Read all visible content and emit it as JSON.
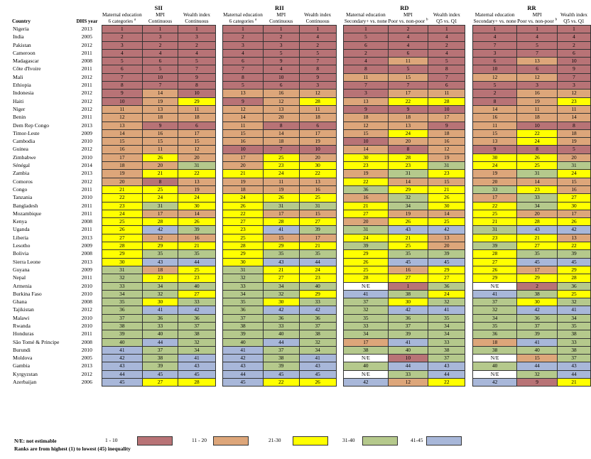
{
  "header": {
    "groups": [
      "SII",
      "RII",
      "RD",
      "RR"
    ],
    "country_label": "Country",
    "dhs_label": "DHS year",
    "sub": [
      [
        "Maternal education",
        "MPI",
        "Wealth index"
      ],
      [
        "Maternal education",
        "MPI",
        "Wealth index"
      ],
      [
        "Maternal education",
        "MPI",
        "Wealth index"
      ],
      [
        "Maternal education",
        "MPI",
        "Wealth index"
      ]
    ],
    "sub2": [
      [
        "6 categories",
        "Continuous",
        "Continuous"
      ],
      [
        "6 categories",
        "Continuous",
        "Continuous"
      ],
      [
        "Secondary+ vs. none",
        "Poor vs. non-poor",
        "Q5 vs. Q1"
      ],
      [
        "Secondary+ vs. none",
        "Poor vs. non-poor",
        "Q5 vs. Q1"
      ]
    ],
    "sup_a": "a",
    "sup_b": "b"
  },
  "rows": [
    {
      "country": "Nigeria",
      "year": "2013",
      "v": [
        "1",
        "1",
        "1",
        "1",
        "1",
        "1",
        "1",
        "2",
        "1",
        "1",
        "1",
        "1"
      ]
    },
    {
      "country": "India",
      "year": "2005",
      "v": [
        "2",
        "3",
        "3",
        "2",
        "2",
        "4",
        "5",
        "4",
        "4",
        "4",
        "4",
        "4"
      ]
    },
    {
      "country": "Pakistan",
      "year": "2012",
      "v": [
        "3",
        "2",
        "2",
        "3",
        "3",
        "2",
        "6",
        "4",
        "2",
        "7",
        "5",
        "2"
      ]
    },
    {
      "country": "Cameroon",
      "year": "2011",
      "v": [
        "4",
        "4",
        "4",
        "4",
        "5",
        "5",
        "2",
        "6",
        "4",
        "3",
        "7",
        "6"
      ]
    },
    {
      "country": "Madagascar",
      "year": "2008",
      "v": [
        "5",
        "6",
        "5",
        "6",
        "9",
        "7",
        "4",
        "11",
        "5",
        "6",
        "13",
        "10"
      ]
    },
    {
      "country": "Côte d'Ivoire",
      "year": "2011",
      "v": [
        "6",
        "5",
        "7",
        "7",
        "4",
        "8",
        "8",
        "5",
        "8",
        "10",
        "6",
        "9"
      ]
    },
    {
      "country": "Mali",
      "year": "2012",
      "v": [
        "7",
        "10",
        "9",
        "8",
        "10",
        "9",
        "11",
        "15",
        "7",
        "12",
        "12",
        "7"
      ]
    },
    {
      "country": "Ethiopia",
      "year": "2011",
      "v": [
        "8",
        "7",
        "8",
        "5",
        "6",
        "3",
        "7",
        "7",
        "6",
        "5",
        "3",
        "3"
      ]
    },
    {
      "country": "Indonesia",
      "year": "2012",
      "v": [
        "9",
        "14",
        "10",
        "13",
        "16",
        "12",
        "3",
        "17",
        "11",
        "2",
        "16",
        "12"
      ]
    },
    {
      "country": "Haiti",
      "year": "2012",
      "v": [
        "10",
        "19",
        "29",
        "9",
        "12",
        "28",
        "13",
        "22",
        "28",
        "8",
        "19",
        "23"
      ]
    },
    {
      "country": "Niger",
      "year": "2012",
      "v": [
        "11",
        "13",
        "11",
        "12",
        "13",
        "11",
        "9",
        "9",
        "10",
        "14",
        "11",
        "11"
      ]
    },
    {
      "country": "Benin",
      "year": "2011",
      "v": [
        "12",
        "18",
        "18",
        "14",
        "20",
        "18",
        "18",
        "18",
        "17",
        "16",
        "18",
        "14"
      ]
    },
    {
      "country": "Dem Rep Congo",
      "year": "2013",
      "v": [
        "13",
        "9",
        "6",
        "11",
        "8",
        "6",
        "12",
        "13",
        "9",
        "11",
        "10",
        "8"
      ]
    },
    {
      "country": "Timor-Leste",
      "year": "2009",
      "v": [
        "14",
        "16",
        "17",
        "15",
        "14",
        "17",
        "15",
        "24",
        "18",
        "15",
        "22",
        "18"
      ]
    },
    {
      "country": "Cambodia",
      "year": "2010",
      "v": [
        "15",
        "15",
        "15",
        "16",
        "18",
        "19",
        "10",
        "20",
        "16",
        "13",
        "24",
        "19"
      ]
    },
    {
      "country": "Guinea",
      "year": "2012",
      "v": [
        "16",
        "11",
        "12",
        "10",
        "7",
        "10",
        "14",
        "8",
        "12",
        "9",
        "8",
        "5"
      ]
    },
    {
      "country": "Zimbabwe",
      "year": "2010",
      "v": [
        "17",
        "26",
        "20",
        "17",
        "25",
        "20",
        "30",
        "28",
        "19",
        "30",
        "26",
        "20"
      ]
    },
    {
      "country": "Sénégal",
      "year": "2014",
      "v": [
        "18",
        "20",
        "31",
        "20",
        "23",
        "30",
        "23",
        "23",
        "31",
        "24",
        "25",
        "31"
      ]
    },
    {
      "country": "Zambia",
      "year": "2013",
      "v": [
        "19",
        "21",
        "22",
        "21",
        "24",
        "22",
        "19",
        "31",
        "23",
        "19",
        "31",
        "24"
      ]
    },
    {
      "country": "Comoros",
      "year": "2012",
      "v": [
        "20",
        "8",
        "13",
        "19",
        "11",
        "13",
        "22",
        "14",
        "15",
        "20",
        "14",
        "15"
      ]
    },
    {
      "country": "Congo",
      "year": "2011",
      "v": [
        "21",
        "25",
        "19",
        "18",
        "19",
        "16",
        "36",
        "29",
        "21",
        "33",
        "23",
        "16"
      ]
    },
    {
      "country": "Tanzania",
      "year": "2010",
      "v": [
        "22",
        "24",
        "24",
        "24",
        "26",
        "25",
        "16",
        "32",
        "26",
        "17",
        "33",
        "27"
      ]
    },
    {
      "country": "Bangladesh",
      "year": "2011",
      "v": [
        "23",
        "31",
        "30",
        "26",
        "31",
        "31",
        "21",
        "34",
        "30",
        "22",
        "34",
        "30"
      ]
    },
    {
      "country": "Mozambique",
      "year": "2011",
      "v": [
        "24",
        "17",
        "14",
        "22",
        "17",
        "15",
        "27",
        "19",
        "14",
        "25",
        "20",
        "17"
      ]
    },
    {
      "country": "Kenya",
      "year": "2008",
      "v": [
        "25",
        "28",
        "26",
        "27",
        "28",
        "27",
        "20",
        "26",
        "25",
        "21",
        "28",
        "26"
      ]
    },
    {
      "country": "Uganda",
      "year": "2011",
      "v": [
        "26",
        "42",
        "39",
        "23",
        "41",
        "39",
        "31",
        "43",
        "42",
        "31",
        "43",
        "42"
      ]
    },
    {
      "country": "Liberia",
      "year": "2013",
      "v": [
        "27",
        "12",
        "16",
        "25",
        "15",
        "17",
        "24",
        "21",
        "13",
        "23",
        "21",
        "13"
      ]
    },
    {
      "country": "Lesotho",
      "year": "2009",
      "v": [
        "28",
        "29",
        "21",
        "28",
        "29",
        "21",
        "39",
        "25",
        "20",
        "39",
        "27",
        "22"
      ]
    },
    {
      "country": "Bolivia",
      "year": "2008",
      "v": [
        "29",
        "35",
        "35",
        "29",
        "35",
        "35",
        "29",
        "35",
        "39",
        "28",
        "35",
        "39"
      ]
    },
    {
      "country": "Sierra Leone",
      "year": "2013",
      "v": [
        "30",
        "43",
        "44",
        "30",
        "43",
        "44",
        "26",
        "45",
        "45",
        "27",
        "45",
        "45"
      ]
    },
    {
      "country": "Guyana",
      "year": "2009",
      "v": [
        "31",
        "18",
        "25",
        "31",
        "21",
        "24",
        "25",
        "16",
        "29",
        "26",
        "17",
        "29"
      ]
    },
    {
      "country": "Nepal",
      "year": "2011",
      "v": [
        "32",
        "23",
        "23",
        "32",
        "27",
        "23",
        "28",
        "27",
        "27",
        "29",
        "29",
        "28"
      ]
    },
    {
      "country": "Armenia",
      "year": "2010",
      "v": [
        "33",
        "34",
        "40",
        "33",
        "34",
        "40",
        "N/E",
        "1",
        "36",
        "N/E",
        "2",
        "36"
      ]
    },
    {
      "country": "Burkina Faso",
      "year": "2010",
      "v": [
        "34",
        "32",
        "27",
        "34",
        "32",
        "29",
        "41",
        "38",
        "24",
        "41",
        "38",
        "25"
      ]
    },
    {
      "country": "Ghana",
      "year": "2008",
      "v": [
        "35",
        "30",
        "33",
        "35",
        "30",
        "33",
        "37",
        "30",
        "32",
        "37",
        "30",
        "32"
      ]
    },
    {
      "country": "Tajikistan",
      "year": "2012",
      "v": [
        "36",
        "41",
        "42",
        "36",
        "42",
        "42",
        "32",
        "42",
        "41",
        "32",
        "42",
        "41"
      ]
    },
    {
      "country": "Malawi",
      "year": "2010",
      "v": [
        "37",
        "36",
        "36",
        "37",
        "36",
        "36",
        "35",
        "36",
        "35",
        "34",
        "36",
        "34"
      ]
    },
    {
      "country": "Rwanda",
      "year": "2010",
      "v": [
        "38",
        "33",
        "37",
        "38",
        "33",
        "37",
        "33",
        "37",
        "34",
        "35",
        "37",
        "35"
      ]
    },
    {
      "country": "Honduras",
      "year": "2011",
      "v": [
        "39",
        "40",
        "38",
        "39",
        "40",
        "38",
        "34",
        "39",
        "34",
        "36",
        "39",
        "38"
      ]
    },
    {
      "country": "São Tomé & Principe",
      "year": "2008",
      "v": [
        "40",
        "44",
        "32",
        "40",
        "44",
        "32",
        "17",
        "41",
        "33",
        "18",
        "41",
        "33"
      ]
    },
    {
      "country": "Burundi",
      "year": "2010",
      "v": [
        "41",
        "37",
        "34",
        "41",
        "37",
        "34",
        "38",
        "40",
        "38",
        "38",
        "40",
        "38"
      ]
    },
    {
      "country": "Moldova",
      "year": "2005",
      "v": [
        "42",
        "38",
        "41",
        "42",
        "38",
        "41",
        "N/E",
        "10",
        "37",
        "N/E",
        "15",
        "37"
      ]
    },
    {
      "country": "Gambia",
      "year": "2013",
      "v": [
        "43",
        "39",
        "43",
        "43",
        "39",
        "43",
        "40",
        "44",
        "43",
        "40",
        "44",
        "43"
      ]
    },
    {
      "country": "Kyrgyzstan",
      "year": "2012",
      "v": [
        "44",
        "45",
        "45",
        "44",
        "45",
        "45",
        "N/E",
        "33",
        "44",
        "N/E",
        "32",
        "44"
      ]
    },
    {
      "country": "Azerbaijan",
      "year": "2006",
      "v": [
        "45",
        "27",
        "28",
        "45",
        "22",
        "26",
        "42",
        "12",
        "22",
        "42",
        "9",
        "21"
      ]
    }
  ],
  "legend": {
    "note_ne": "N/E: not estimable",
    "note_ranks": "Ranks are from highest (1) to lowest (45) inequality",
    "items": [
      "1 - 10",
      "11 - 20",
      "21-30",
      "31-40",
      "41-45"
    ],
    "colors": [
      "#b87376",
      "#dda67a",
      "#ffff00",
      "#b5c98c",
      "#a8b7d9"
    ]
  }
}
